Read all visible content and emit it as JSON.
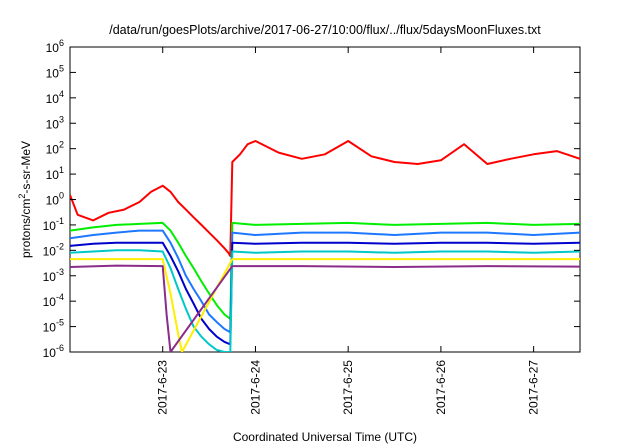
{
  "chart_data": {
    "type": "line",
    "title": "/data/run/goesPlots/archive/2017-06-27/10:00/flux/../flux/5daysMoonFluxes.txt",
    "xlabel": "Coordinated Universal Time (UTC)",
    "ylabel": "protons/cm2-s-sr-MeV",
    "ylabel_parts": {
      "pre": "protons/cm",
      "sup": "2",
      "post": "-s-sr-MeV"
    },
    "yscale": "log",
    "ylim": [
      1e-06,
      1000000.0
    ],
    "xlim": [
      "2017-06-22T00:00",
      "2017-06-27T12:00"
    ],
    "x_ticks": [
      {
        "x": "2017-06-23T00:00",
        "label": "2017-6-23"
      },
      {
        "x": "2017-06-24T00:00",
        "label": "2017-6-24"
      },
      {
        "x": "2017-06-25T00:00",
        "label": "2017-6-25"
      },
      {
        "x": "2017-06-26T00:00",
        "label": "2017-6-26"
      },
      {
        "x": "2017-06-27T00:00",
        "label": "2017-6-27"
      }
    ],
    "y_ticks": [
      {
        "value": 1e-06,
        "base": "10",
        "exp": "-6"
      },
      {
        "value": 1e-05,
        "base": "10",
        "exp": "-5"
      },
      {
        "value": 0.0001,
        "base": "10",
        "exp": "-4"
      },
      {
        "value": 0.001,
        "base": "10",
        "exp": "-3"
      },
      {
        "value": 0.01,
        "base": "10",
        "exp": "-2"
      },
      {
        "value": 0.1,
        "base": "10",
        "exp": "-1"
      },
      {
        "value": 1,
        "base": "10",
        "exp": "0"
      },
      {
        "value": 10,
        "base": "10",
        "exp": "1"
      },
      {
        "value": 100,
        "base": "10",
        "exp": "2"
      },
      {
        "value": 1000,
        "base": "10",
        "exp": "3"
      },
      {
        "value": 10000,
        "base": "10",
        "exp": "4"
      },
      {
        "value": 100000,
        "base": "10",
        "exp": "5"
      },
      {
        "value": 1000000,
        "base": "10",
        "exp": "6"
      }
    ],
    "grid": false,
    "legend": "none",
    "series": [
      {
        "color": "#ff0000",
        "x": [
          "2017-06-22T00:00",
          "2017-06-22T02:00",
          "2017-06-22T06:00",
          "2017-06-22T10:00",
          "2017-06-22T14:00",
          "2017-06-22T18:00",
          "2017-06-22T21:00",
          "2017-06-23T00:00",
          "2017-06-23T02:00",
          "2017-06-23T04:00",
          "2017-06-23T06:00",
          "2017-06-23T08:00",
          "2017-06-23T10:00",
          "2017-06-23T12:00",
          "2017-06-23T14:00",
          "2017-06-23T16:00",
          "2017-06-23T17:00",
          "2017-06-23T17:30",
          "2017-06-23T18:00",
          "2017-06-23T20:00",
          "2017-06-23T22:00",
          "2017-06-24T00:00",
          "2017-06-24T06:00",
          "2017-06-24T12:00",
          "2017-06-24T18:00",
          "2017-06-25T00:00",
          "2017-06-25T06:00",
          "2017-06-25T12:00",
          "2017-06-25T18:00",
          "2017-06-26T00:00",
          "2017-06-26T06:00",
          "2017-06-26T12:00",
          "2017-06-26T18:00",
          "2017-06-27T00:00",
          "2017-06-27T06:00",
          "2017-06-27T12:00"
        ],
        "y": [
          1.5,
          0.25,
          0.15,
          0.3,
          0.4,
          0.8,
          2.0,
          3.5,
          2.0,
          0.8,
          0.4,
          0.2,
          0.1,
          0.05,
          0.025,
          0.012,
          0.008,
          0.006,
          30,
          60,
          150,
          200,
          70,
          40,
          60,
          200,
          50,
          30,
          25,
          35,
          150,
          25,
          40,
          60,
          80,
          40
        ]
      },
      {
        "color": "#00ee00",
        "x": [
          "2017-06-22T00:00",
          "2017-06-22T06:00",
          "2017-06-22T12:00",
          "2017-06-22T18:00",
          "2017-06-23T00:00",
          "2017-06-23T02:00",
          "2017-06-23T04:00",
          "2017-06-23T06:00",
          "2017-06-23T08:00",
          "2017-06-23T10:00",
          "2017-06-23T12:00",
          "2017-06-23T14:00",
          "2017-06-23T16:00",
          "2017-06-23T17:30",
          "2017-06-23T18:00",
          "2017-06-24T00:00",
          "2017-06-24T12:00",
          "2017-06-25T00:00",
          "2017-06-25T12:00",
          "2017-06-26T00:00",
          "2017-06-26T12:00",
          "2017-06-27T00:00",
          "2017-06-27T12:00"
        ],
        "y": [
          0.06,
          0.08,
          0.1,
          0.11,
          0.12,
          0.06,
          0.02,
          0.006,
          0.002,
          0.0006,
          0.0002,
          7e-05,
          3e-05,
          2e-05,
          0.12,
          0.1,
          0.11,
          0.12,
          0.1,
          0.11,
          0.12,
          0.1,
          0.11
        ]
      },
      {
        "color": "#1e78ff",
        "x": [
          "2017-06-22T00:00",
          "2017-06-22T06:00",
          "2017-06-22T12:00",
          "2017-06-22T18:00",
          "2017-06-23T00:00",
          "2017-06-23T02:00",
          "2017-06-23T04:00",
          "2017-06-23T06:00",
          "2017-06-23T08:00",
          "2017-06-23T10:00",
          "2017-06-23T12:00",
          "2017-06-23T14:00",
          "2017-06-23T16:00",
          "2017-06-23T17:30",
          "2017-06-23T18:00",
          "2017-06-24T00:00",
          "2017-06-24T12:00",
          "2017-06-25T00:00",
          "2017-06-25T12:00",
          "2017-06-26T00:00",
          "2017-06-26T12:00",
          "2017-06-27T00:00",
          "2017-06-27T12:00"
        ],
        "y": [
          0.03,
          0.04,
          0.05,
          0.06,
          0.06,
          0.02,
          0.005,
          0.001,
          0.0003,
          0.0001,
          3e-05,
          1.5e-05,
          8e-06,
          6e-06,
          0.05,
          0.04,
          0.05,
          0.05,
          0.04,
          0.05,
          0.05,
          0.04,
          0.05
        ]
      },
      {
        "color": "#0000cc",
        "x": [
          "2017-06-22T00:00",
          "2017-06-22T06:00",
          "2017-06-22T12:00",
          "2017-06-22T18:00",
          "2017-06-23T00:00",
          "2017-06-23T02:00",
          "2017-06-23T04:00",
          "2017-06-23T06:00",
          "2017-06-23T08:00",
          "2017-06-23T10:00",
          "2017-06-23T12:00",
          "2017-06-23T14:00",
          "2017-06-23T16:00",
          "2017-06-23T17:30",
          "2017-06-23T18:00",
          "2017-06-24T00:00",
          "2017-06-24T12:00",
          "2017-06-25T00:00",
          "2017-06-25T12:00",
          "2017-06-26T00:00",
          "2017-06-26T12:00",
          "2017-06-27T00:00",
          "2017-06-27T12:00"
        ],
        "y": [
          0.015,
          0.018,
          0.02,
          0.02,
          0.02,
          0.006,
          0.0015,
          0.0003,
          8e-05,
          2e-05,
          8e-06,
          4e-06,
          2.5e-06,
          2e-06,
          0.02,
          0.018,
          0.02,
          0.02,
          0.018,
          0.02,
          0.02,
          0.018,
          0.02
        ]
      },
      {
        "color": "#00c8c8",
        "x": [
          "2017-06-22T00:00",
          "2017-06-22T06:00",
          "2017-06-22T12:00",
          "2017-06-22T18:00",
          "2017-06-23T00:00",
          "2017-06-23T02:00",
          "2017-06-23T04:00",
          "2017-06-23T06:00",
          "2017-06-23T08:00",
          "2017-06-23T10:00",
          "2017-06-23T12:00",
          "2017-06-23T14:00",
          "2017-06-23T16:00",
          "2017-06-23T17:30",
          "2017-06-23T18:00",
          "2017-06-24T00:00",
          "2017-06-24T12:00",
          "2017-06-25T00:00",
          "2017-06-25T12:00",
          "2017-06-26T00:00",
          "2017-06-26T12:00",
          "2017-06-27T00:00",
          "2017-06-27T12:00"
        ],
        "y": [
          0.008,
          0.009,
          0.01,
          0.01,
          0.009,
          0.002,
          0.0003,
          5e-05,
          1e-05,
          4e-06,
          2e-06,
          1.2e-06,
          1e-06,
          1e-06,
          0.009,
          0.008,
          0.009,
          0.009,
          0.008,
          0.009,
          0.009,
          0.008,
          0.009
        ]
      },
      {
        "color": "#ffee00",
        "x": [
          "2017-06-22T00:00",
          "2017-06-22T12:00",
          "2017-06-23T00:00",
          "2017-06-23T02:00",
          "2017-06-23T04:00",
          "2017-06-23T05:00",
          "2017-06-23T18:00",
          "2017-06-24T12:00",
          "2017-06-25T12:00",
          "2017-06-26T12:00",
          "2017-06-27T12:00"
        ],
        "y": [
          0.0045,
          0.0045,
          0.0045,
          0.0002,
          5e-06,
          1e-06,
          0.0045,
          0.0045,
          0.0045,
          0.0045,
          0.0045
        ]
      },
      {
        "color": "#8b2c8b",
        "x": [
          "2017-06-22T00:00",
          "2017-06-22T12:00",
          "2017-06-23T00:00",
          "2017-06-23T01:00",
          "2017-06-23T02:00",
          "2017-06-23T18:00",
          "2017-06-24T12:00",
          "2017-06-25T12:00",
          "2017-06-26T12:00",
          "2017-06-27T12:00"
        ],
        "y": [
          0.0022,
          0.0025,
          0.0024,
          3e-05,
          1e-06,
          0.0024,
          0.0024,
          0.0022,
          0.0024,
          0.0023
        ]
      }
    ]
  }
}
